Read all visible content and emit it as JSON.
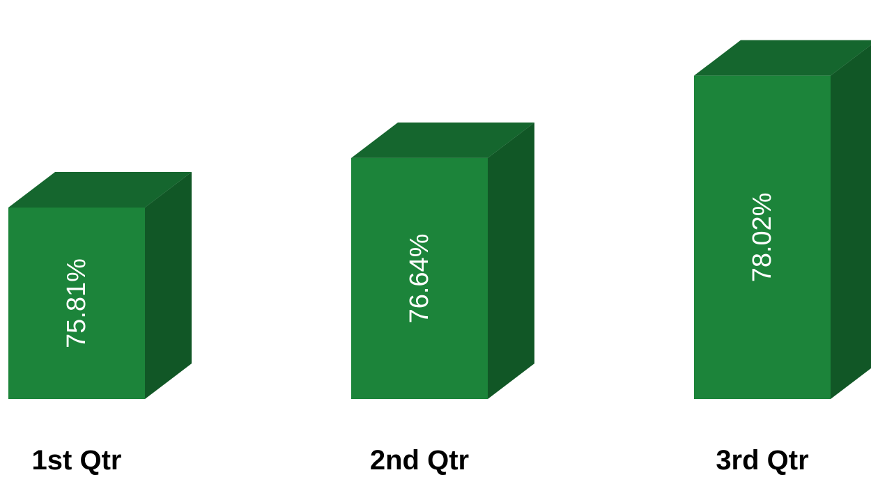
{
  "chart_data": {
    "type": "bar",
    "style": "3d-column",
    "categories": [
      "1st Qtr",
      "2nd Qtr",
      "3rd Qtr"
    ],
    "values": [
      75.81,
      76.64,
      78.02
    ],
    "value_labels": [
      "75.81%",
      "76.64%",
      "78.02%"
    ],
    "value_unit": "%",
    "value_label_orientation": "vertical",
    "title": "",
    "xlabel": "",
    "ylabel": "",
    "ylim": [
      72.6,
      78.6
    ],
    "grid": false,
    "legend": "none"
  },
  "colors": {
    "front": "#1c843a",
    "top": "#15662e",
    "side": "#115726",
    "value_text": "#ffffff",
    "category_text": "#000000",
    "background": "#ffffff"
  }
}
